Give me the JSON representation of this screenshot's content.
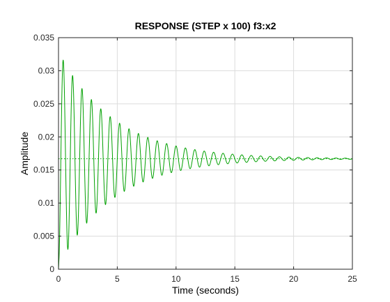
{
  "chart_data": {
    "type": "line",
    "title": "RESPONSE (STEP x 100) f3:x2",
    "xlabel": "Time (seconds)",
    "ylabel": "Amplitude",
    "xlim": [
      0,
      25
    ],
    "ylim": [
      0,
      0.035
    ],
    "x_ticks": [
      "0",
      "5",
      "10",
      "15",
      "20",
      "25"
    ],
    "y_ticks": [
      "0",
      "0.005",
      "0.01",
      "0.015",
      "0.02",
      "0.025",
      "0.03",
      "0.035"
    ],
    "grid": true,
    "legend": "none",
    "series": [
      {
        "style": "solid",
        "color": "#00a000",
        "steady_state": 0.0167,
        "peak_time": 0.4,
        "peak_value": 0.0316,
        "oscillation_period": 0.8,
        "settling_time": 20
      },
      {
        "style": "dotted",
        "color": "#00a000",
        "y": 0.0167
      }
    ]
  },
  "colors": {
    "axes": "#262626",
    "grid": "#dcdcdc",
    "line": "#00a000"
  }
}
